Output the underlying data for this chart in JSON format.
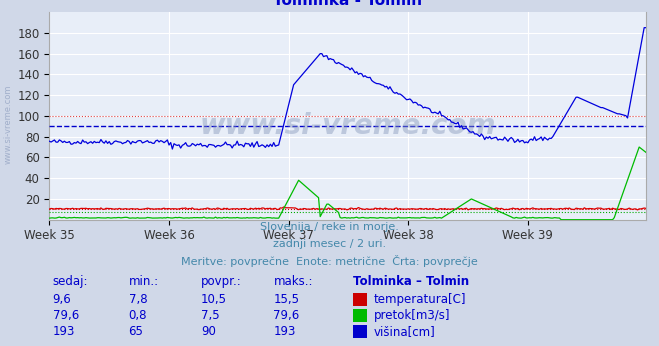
{
  "title": "Tolminka - Tolmin",
  "title_color": "#0000cc",
  "bg_color": "#d0d8e8",
  "plot_bg_color": "#e8eef8",
  "grid_color": "#ffffff",
  "xlabel_weeks": [
    "Week 35",
    "Week 36",
    "Week 37",
    "Week 38",
    "Week 39"
  ],
  "ylim": [
    0,
    200
  ],
  "yticks": [
    20,
    40,
    60,
    80,
    100,
    120,
    140,
    160,
    180
  ],
  "n_points": 360,
  "avg_blue": 90,
  "avg_red": 10.5,
  "avg_green": 7.5,
  "avg_line_color_blue": "#0000cc",
  "avg_line_color_red": "#cc0000",
  "avg_line_color_green": "#00aa00",
  "line_color_blue": "#0000dd",
  "line_color_red": "#dd0000",
  "line_color_green": "#00bb00",
  "subtitle1": "Slovenija / reke in morje.",
  "subtitle2": "zadnji mesec / 2 uri.",
  "subtitle3": "Meritve: povprečne  Enote: metrične  Črta: povprečje",
  "subtitle_color": "#4488aa",
  "table_color": "#0000cc",
  "rows": [
    {
      "sedaj": "9,6",
      "min": "7,8",
      "povpr": "10,5",
      "maks": "15,5",
      "label": "temperatura[C]",
      "color": "#cc0000"
    },
    {
      "sedaj": "79,6",
      "min": "0,8",
      "povpr": "7,5",
      "maks": "79,6",
      "label": "pretok[m3/s]",
      "color": "#00bb00"
    },
    {
      "sedaj": "193",
      "min": "65",
      "povpr": "90",
      "maks": "193",
      "label": "višina[cm]",
      "color": "#0000cc"
    }
  ],
  "watermark": "www.si-vreme.com",
  "watermark_color": "#8899bb",
  "watermark_alpha": 0.45
}
